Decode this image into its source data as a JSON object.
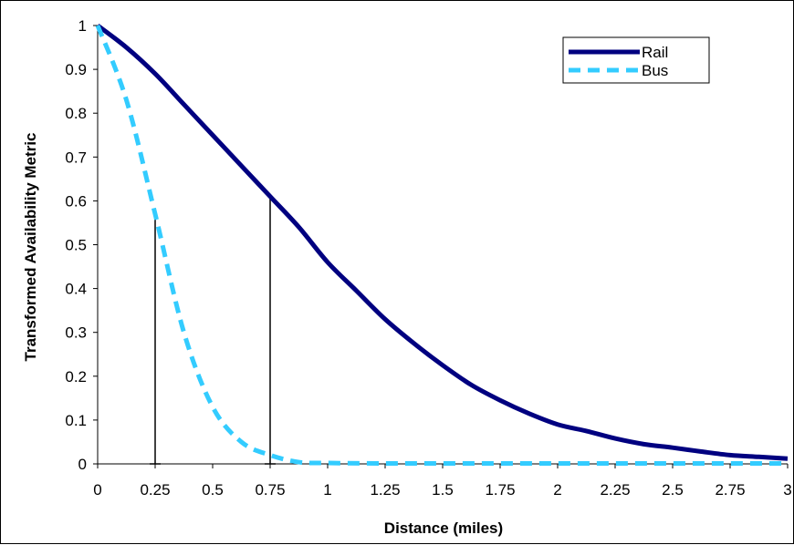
{
  "chart_data": {
    "type": "line",
    "title": "",
    "xlabel": "Distance (miles)",
    "ylabel": "Transformed Availability Metric",
    "xlim": [
      0,
      3
    ],
    "ylim": [
      0,
      1
    ],
    "x_ticks": [
      0,
      0.25,
      0.5,
      0.75,
      1,
      1.25,
      1.5,
      1.75,
      2,
      2.25,
      2.5,
      2.75,
      3
    ],
    "y_ticks": [
      0,
      0.1,
      0.2,
      0.3,
      0.4,
      0.5,
      0.6,
      0.7,
      0.8,
      0.9,
      1
    ],
    "grid": false,
    "legend_position": "top-right",
    "series": [
      {
        "name": "Rail",
        "style": "solid",
        "color": "#000080",
        "x": [
          0,
          0.125,
          0.25,
          0.375,
          0.5,
          0.625,
          0.75,
          0.875,
          1,
          1.125,
          1.25,
          1.375,
          1.5,
          1.625,
          1.75,
          1.875,
          2,
          2.125,
          2.25,
          2.375,
          2.5,
          2.625,
          2.75,
          2.875,
          3
        ],
        "y": [
          1,
          0.95,
          0.89,
          0.82,
          0.75,
          0.68,
          0.61,
          0.54,
          0.46,
          0.395,
          0.33,
          0.275,
          0.225,
          0.18,
          0.145,
          0.115,
          0.09,
          0.075,
          0.058,
          0.045,
          0.037,
          0.028,
          0.02,
          0.016,
          0.012
        ]
      },
      {
        "name": "Bus",
        "style": "dashed",
        "color": "#33CCFF",
        "x": [
          0,
          0.125,
          0.25,
          0.375,
          0.5,
          0.625,
          0.75,
          0.875,
          1,
          1.25,
          1.5,
          1.75,
          2,
          2.25,
          2.5,
          2.75,
          3
        ],
        "y": [
          1,
          0.83,
          0.57,
          0.3,
          0.13,
          0.05,
          0.02,
          0.004,
          0.002,
          0.001,
          0.001,
          0.001,
          0.001,
          0.001,
          0.001,
          0.001,
          0.001
        ]
      }
    ],
    "drop_lines": [
      {
        "x": 0.25,
        "y": 0.57
      },
      {
        "x": 0.75,
        "y": 0.61
      }
    ]
  }
}
